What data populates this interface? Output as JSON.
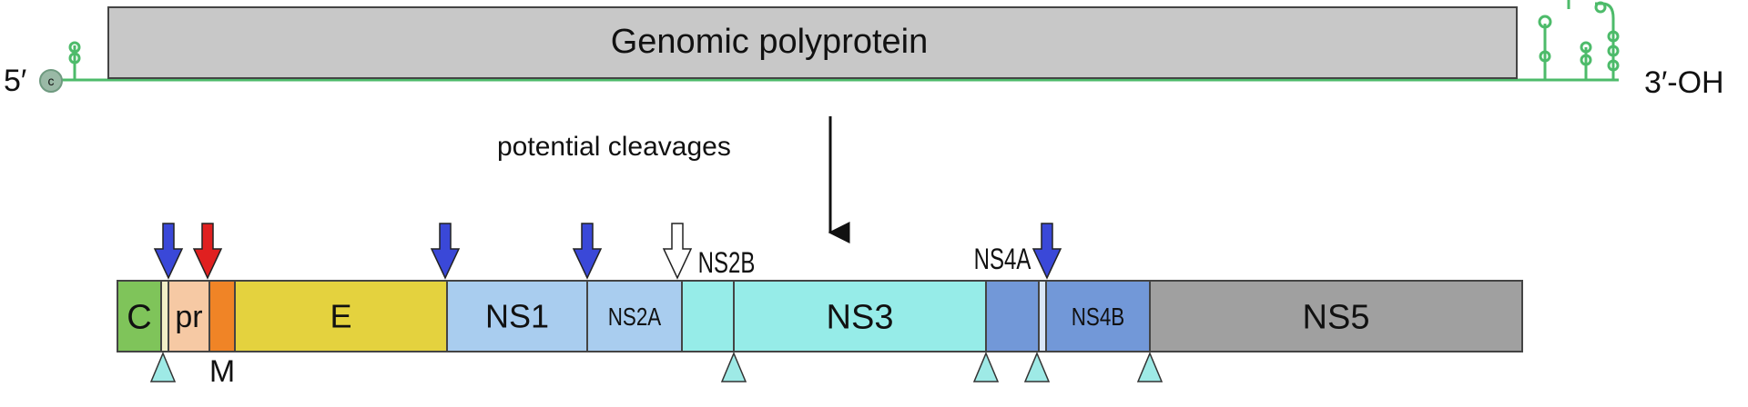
{
  "title": "Genomic polyprotein",
  "ends": {
    "five_prime": "5′",
    "three_prime": "3′-OH",
    "cap": "c"
  },
  "cleavage_label": "potential cleavages",
  "segments": [
    {
      "id": "c",
      "label": "C",
      "color": "#7fc45a"
    },
    {
      "id": "gap1",
      "label": "",
      "color": "#f2efc7"
    },
    {
      "id": "pr",
      "label": "pr",
      "color": "#f6c9a4"
    },
    {
      "id": "m",
      "label": "",
      "color": "#f08426"
    },
    {
      "id": "e",
      "label": "E",
      "color": "#e4d23e"
    },
    {
      "id": "ns1",
      "label": "NS1",
      "color": "#a9cdef"
    },
    {
      "id": "ns2a",
      "label": "NS2A",
      "color": "#a9cdef"
    },
    {
      "id": "ns2b",
      "label": "",
      "color": "#96ece8"
    },
    {
      "id": "ns3",
      "label": "NS3",
      "color": "#96ece8"
    },
    {
      "id": "ns4a",
      "label": "",
      "color": "#7298d8"
    },
    {
      "id": "gap2",
      "label": "",
      "color": "#d9e6f7"
    },
    {
      "id": "ns4b",
      "label": "NS4B",
      "color": "#7298d8"
    },
    {
      "id": "ns5",
      "label": "NS5",
      "color": "#a0a0a0"
    }
  ],
  "above_labels": {
    "ns2b": "NS2B",
    "ns4a": "NS4A"
  },
  "below_labels": {
    "m": "M"
  },
  "colors": {
    "rna_line": "#4dbb6a",
    "polyprotein_fill": "#c8c8c8",
    "arrow_host": "#3a48d8",
    "arrow_furin": "#e02020",
    "arrow_viral": "#ffffff",
    "triangle": "#9eeae6"
  }
}
